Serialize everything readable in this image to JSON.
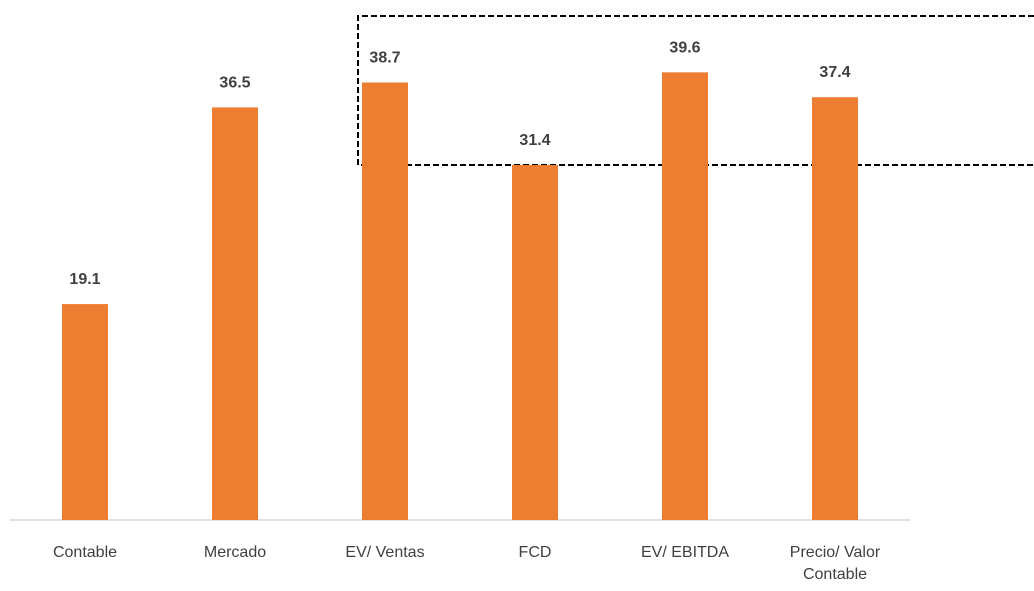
{
  "chart_data": {
    "type": "bar",
    "categories": [
      "Contable",
      "Mercado",
      "EV/ Ventas",
      "FCD",
      "EV/ EBITDA",
      "Precio/ Valor Contable"
    ],
    "values": [
      19.1,
      36.5,
      38.7,
      31.4,
      39.6,
      37.4
    ],
    "color": "#ed7d31",
    "ylim": [
      0,
      46
    ]
  }
}
